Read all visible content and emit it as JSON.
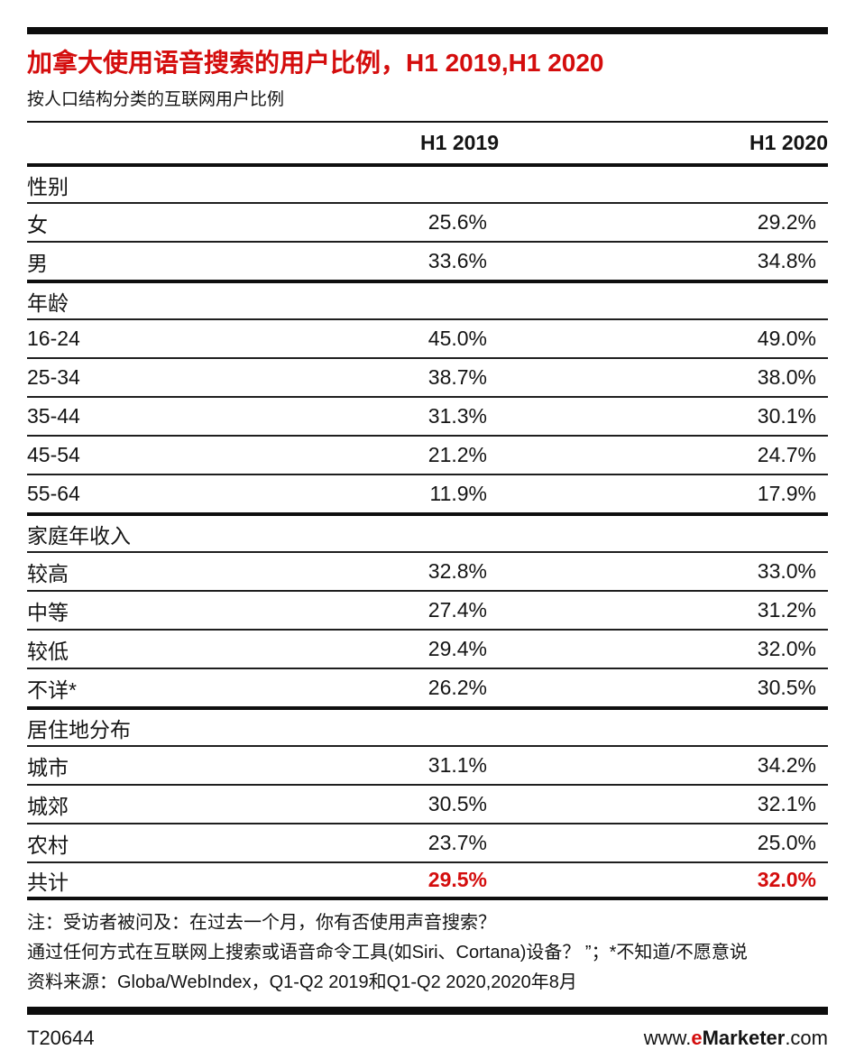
{
  "colors": {
    "accent_red": "#d40d0d",
    "bar_black": "#0d0d0d"
  },
  "header": {
    "title": "加拿大使用语音搜索的用户比例，H1 2019,H1 2020",
    "subtitle": "按人口结构分类的互联网用户比例"
  },
  "chart_data": {
    "type": "table",
    "columns": [
      "",
      "H1 2019",
      "H1 2020"
    ],
    "sections": [
      {
        "label": "性别",
        "rows": [
          {
            "label": "女",
            "values": [
              "25.6%",
              "29.2%"
            ]
          },
          {
            "label": "男",
            "values": [
              "33.6%",
              "34.8%"
            ]
          }
        ]
      },
      {
        "label": "年龄",
        "rows": [
          {
            "label": "16-24",
            "values": [
              "45.0%",
              "49.0%"
            ]
          },
          {
            "label": "25-34",
            "values": [
              "38.7%",
              "38.0%"
            ]
          },
          {
            "label": "35-44",
            "values": [
              "31.3%",
              "30.1%"
            ]
          },
          {
            "label": "45-54",
            "values": [
              "21.2%",
              "24.7%"
            ]
          },
          {
            "label": "55-64",
            "values": [
              "11.9%",
              "17.9%"
            ]
          }
        ]
      },
      {
        "label": "家庭年收入",
        "rows": [
          {
            "label": "较高",
            "values": [
              "32.8%",
              "33.0%"
            ]
          },
          {
            "label": "中等",
            "values": [
              "27.4%",
              "31.2%"
            ]
          },
          {
            "label": "较低",
            "values": [
              "29.4%",
              "32.0%"
            ]
          },
          {
            "label": "不详*",
            "values": [
              "26.2%",
              "30.5%"
            ]
          }
        ]
      },
      {
        "label": "居住地分布",
        "rows": [
          {
            "label": "城市",
            "values": [
              "31.1%",
              "34.2%"
            ]
          },
          {
            "label": "城郊",
            "values": [
              "30.5%",
              "32.1%"
            ]
          },
          {
            "label": "农村",
            "values": [
              "23.7%",
              "25.0%"
            ]
          }
        ]
      }
    ],
    "total": {
      "label": "共计",
      "values": [
        "29.5%",
        "32.0%"
      ]
    }
  },
  "notes": [
    "注：受访者被问及：在过去一个月，你有否使用声音搜索？",
    "通过任何方式在互联网上搜索或语音命令工具(如Siri、Cortana)设备？ ”；*不知道/不愿意说",
    "资料来源：Globa/WebIndex，Q1-Q2 2019和Q1-Q2 2020,2020年8月"
  ],
  "footer": {
    "chart_id": "T20644",
    "url_prefix": "www.",
    "url_brand_e": "e",
    "url_brand_rest": "Marketer",
    "url_suffix": ".com"
  }
}
